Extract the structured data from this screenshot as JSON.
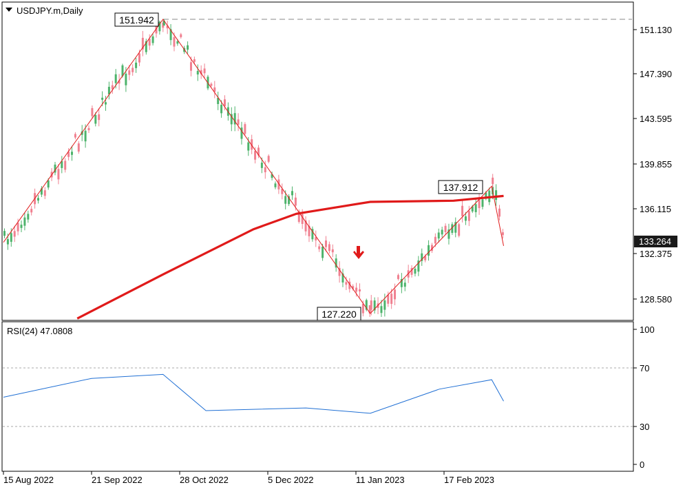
{
  "header": {
    "symbol_label": "USDJPY.m,Daily",
    "triangle_icon": "triangle-down-icon"
  },
  "colors": {
    "bull": "#4db36b",
    "bear": "#f08090",
    "ma": "#e01a1a",
    "zigzag": "#e01a1a",
    "rsi": "#1f6fd4",
    "grid_dash": "#888888",
    "current_price_bg": "#1a1a1a",
    "signal_arrow": "#e01a1a"
  },
  "price_axis": {
    "ticks": [
      "151.130",
      "147.390",
      "143.595",
      "139.855",
      "136.115",
      "132.375",
      "128.580"
    ],
    "current_price": "133.264"
  },
  "rsi_panel": {
    "label": "RSI(24) 47.0808",
    "ticks": [
      "100",
      "70",
      "30",
      "0"
    ]
  },
  "time_axis": {
    "labels": [
      "15 Aug 2022",
      "21 Sep 2022",
      "28 Oct 2022",
      "5 Dec 2022",
      "11 Jan 2023",
      "17 Feb 2023"
    ]
  },
  "chart_data": {
    "type": "line",
    "title": "USDJPY.m,Daily",
    "series": [
      {
        "name": "zigzag",
        "x": [
          "2022-08-15",
          "2022-10-21",
          "2023-01-16",
          "2023-03-08",
          "2023-03-13"
        ],
        "values": [
          133.2,
          151.942,
          127.22,
          137.912,
          132.9
        ]
      },
      {
        "name": "ma",
        "x": [
          "2022-09-15",
          "2022-10-21",
          "2022-11-28",
          "2022-12-16",
          "2023-01-16",
          "2023-02-20",
          "2023-03-13"
        ],
        "values": [
          126.8,
          130.5,
          134.3,
          135.6,
          136.6,
          136.7,
          137.1
        ]
      },
      {
        "name": "rsi",
        "x": [
          "2022-08-15",
          "2022-09-21",
          "2022-10-21",
          "2022-11-08",
          "2022-12-20",
          "2023-01-16",
          "2023-02-14",
          "2023-03-08",
          "2023-03-13"
        ],
        "values": [
          50,
          64,
          67,
          40,
          42,
          38,
          56,
          63,
          47.08
        ]
      }
    ],
    "annotations": [
      "151.942",
      "137.912",
      "127.220"
    ],
    "ylim": [
      125.7,
      153.4
    ],
    "rsi_ylim": [
      0,
      100
    ],
    "rsi_levels": [
      30,
      70
    ],
    "xlabel": "",
    "ylabel": ""
  }
}
